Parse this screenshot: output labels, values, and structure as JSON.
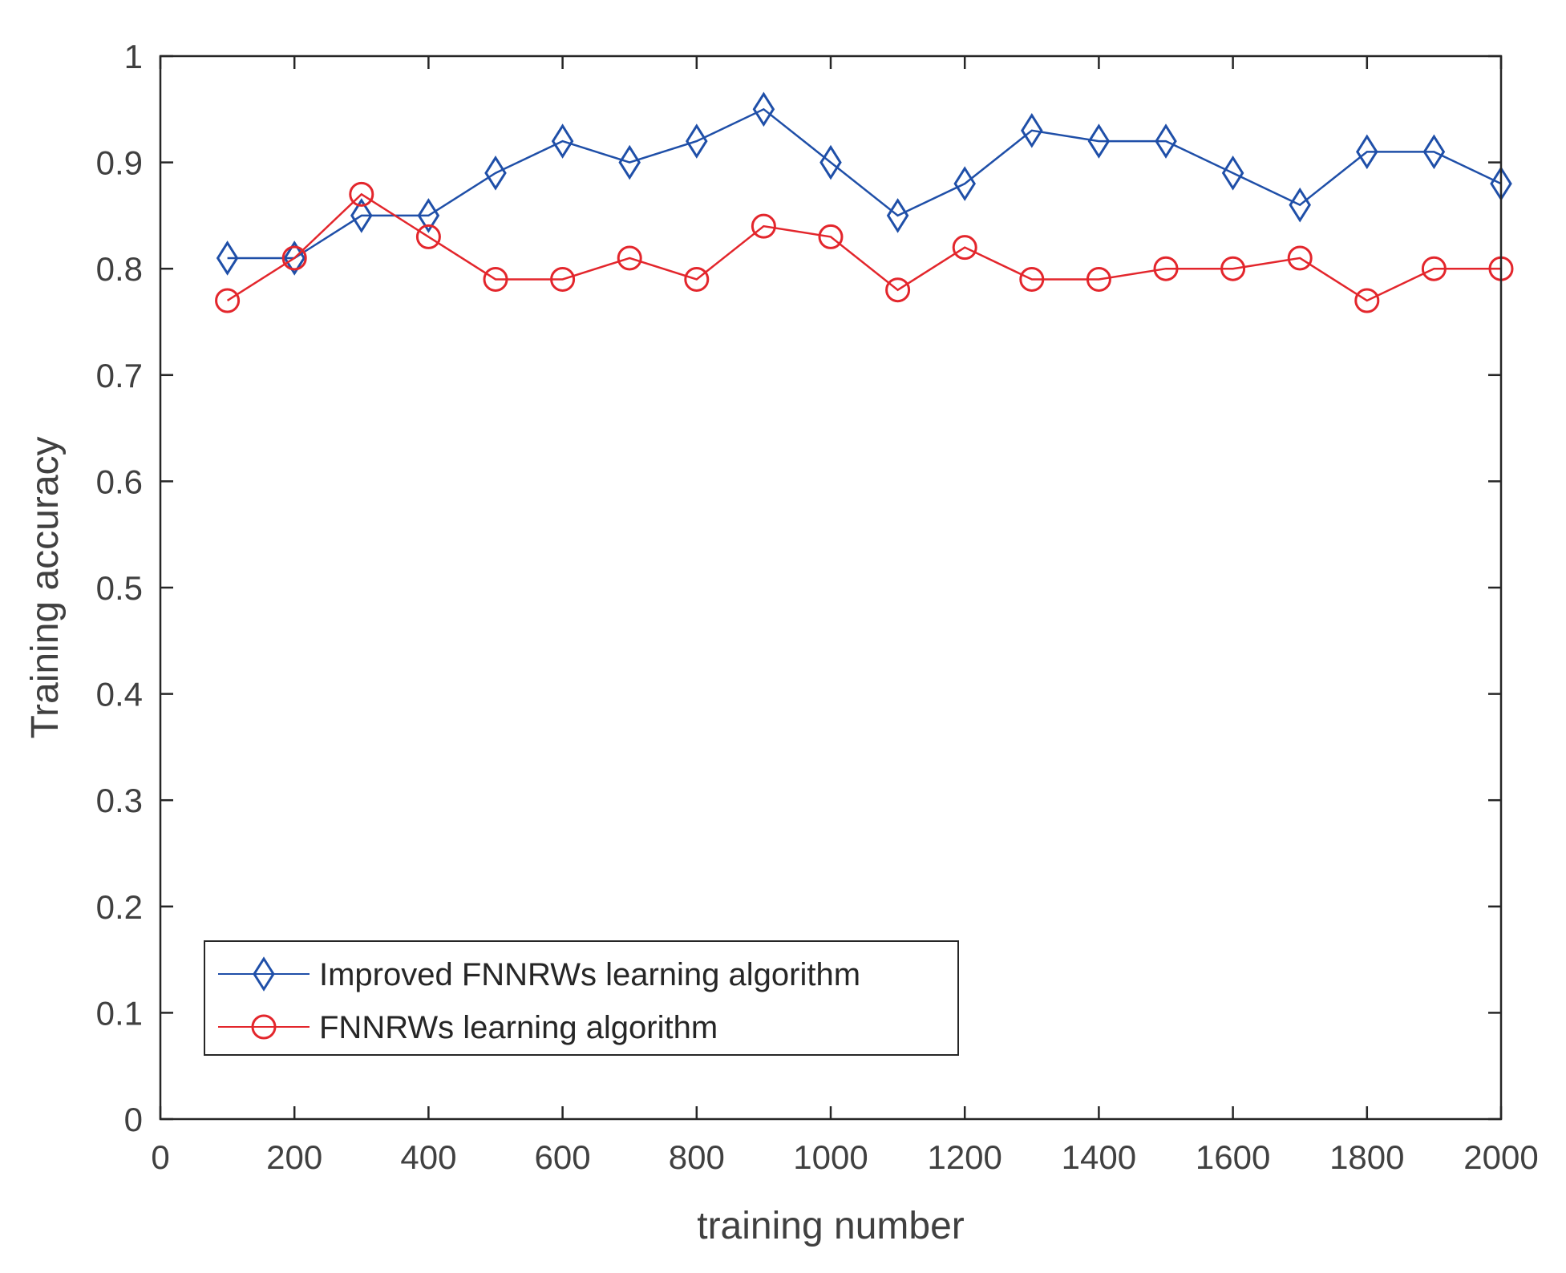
{
  "chart_data": {
    "type": "line",
    "xlabel": "training number",
    "ylabel": "Training accuracy",
    "xlim": [
      0,
      2000
    ],
    "ylim": [
      0,
      1
    ],
    "xticks": [
      "0",
      "200",
      "400",
      "600",
      "800",
      "1000",
      "1200",
      "1400",
      "1600",
      "1800",
      "2000"
    ],
    "yticks": [
      "0",
      "0.1",
      "0.2",
      "0.3",
      "0.4",
      "0.5",
      "0.6",
      "0.7",
      "0.8",
      "0.9",
      "1"
    ],
    "grid": false,
    "legend_position": "bottom-left",
    "x": [
      100,
      200,
      300,
      400,
      500,
      600,
      700,
      800,
      900,
      1000,
      1100,
      1200,
      1300,
      1400,
      1500,
      1600,
      1700,
      1800,
      1900,
      2000
    ],
    "series": [
      {
        "name": "Improved FNNRWs learning algorithm",
        "marker": "diamond",
        "color": "#1f4fa8",
        "values": [
          0.81,
          0.81,
          0.85,
          0.85,
          0.89,
          0.92,
          0.9,
          0.92,
          0.95,
          0.9,
          0.85,
          0.88,
          0.93,
          0.92,
          0.92,
          0.89,
          0.86,
          0.91,
          0.91,
          0.88
        ]
      },
      {
        "name": "FNNRWs learning algorithm",
        "marker": "circle",
        "color": "#e3262c",
        "values": [
          0.77,
          0.81,
          0.87,
          0.83,
          0.79,
          0.79,
          0.81,
          0.79,
          0.84,
          0.83,
          0.78,
          0.82,
          0.79,
          0.79,
          0.8,
          0.8,
          0.81,
          0.77,
          0.8,
          0.8
        ]
      }
    ]
  }
}
